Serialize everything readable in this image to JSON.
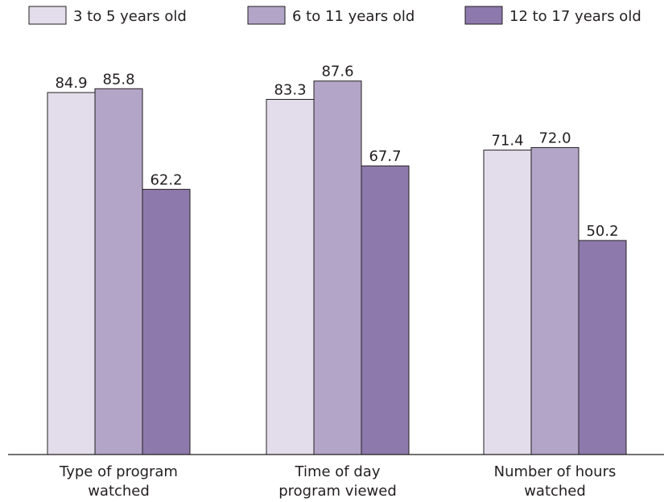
{
  "chart_data": {
    "type": "bar",
    "categories": [
      [
        "Type of program",
        "watched"
      ],
      [
        "Time of day",
        "program viewed"
      ],
      [
        "Number of hours",
        "watched"
      ]
    ],
    "series": [
      {
        "name": "3 to 5 years old",
        "values": [
          84.9,
          83.3,
          71.4
        ],
        "color": "#e3dcea",
        "labels": [
          "84.9",
          "83.3",
          "71.4"
        ]
      },
      {
        "name": "6 to 11 years old",
        "values": [
          85.8,
          87.6,
          72.0
        ],
        "color": "#b3a5c8",
        "labels": [
          "85.8",
          "87.6",
          "72.0"
        ]
      },
      {
        "name": "12 to 17 years old",
        "values": [
          62.2,
          67.7,
          50.2
        ],
        "color": "#8e79ad",
        "labels": [
          "62.2",
          "67.7",
          "50.2"
        ]
      }
    ],
    "ylim": [
      0,
      100
    ],
    "grid": false,
    "legend": "top",
    "bar_outline_color": "#231f20",
    "axis_color": "#231f20"
  }
}
